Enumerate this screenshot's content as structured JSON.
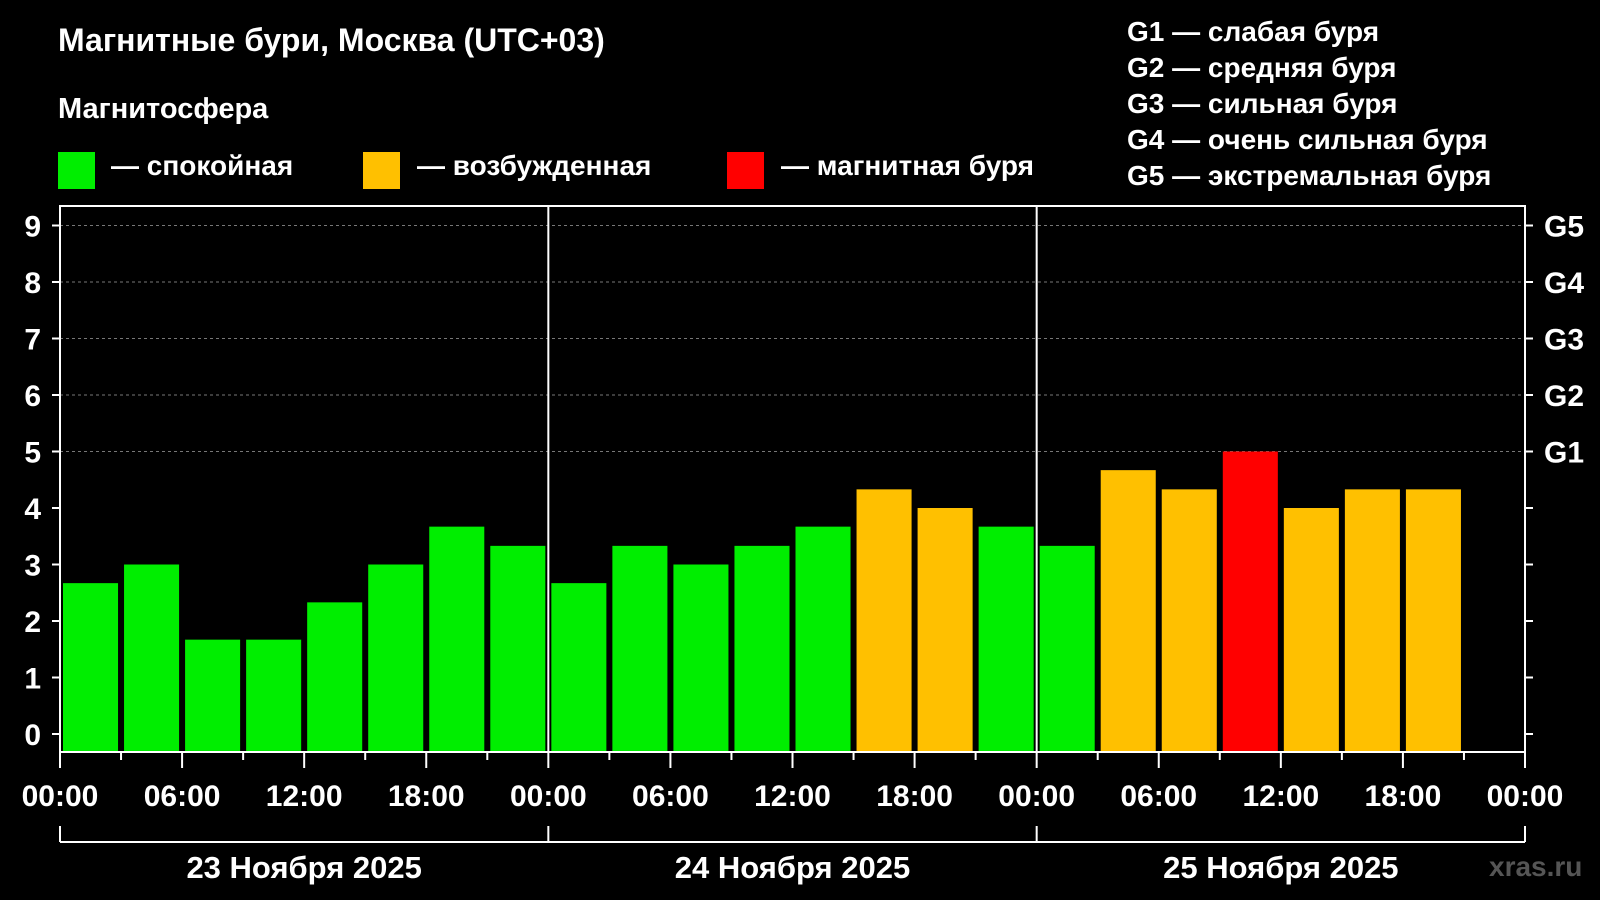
{
  "header": {
    "title": "Магнитные бури, Москва (UTC+03)",
    "subtitle": "Магнитосфера"
  },
  "legend": [
    {
      "label": "— спокойная",
      "color": "#00ee00"
    },
    {
      "label": "— возбужденная",
      "color": "#ffc000"
    },
    {
      "label": "— магнитная буря",
      "color": "#ff0000"
    }
  ],
  "g_scale": [
    "G1 — слабая буря",
    "G2 — средняя буря",
    "G3 — сильная буря",
    "G4 — очень сильная буря",
    "G5 — экстремальная буря"
  ],
  "watermark": "xras.ru",
  "chart_data": {
    "type": "bar",
    "ylim": [
      0,
      9
    ],
    "y_ticks": [
      "0",
      "1",
      "2",
      "3",
      "4",
      "5",
      "6",
      "7",
      "8",
      "9"
    ],
    "y_right_ticks": [
      {
        "value": 5,
        "label": "G1"
      },
      {
        "value": 6,
        "label": "G2"
      },
      {
        "value": 7,
        "label": "G3"
      },
      {
        "value": 8,
        "label": "G4"
      },
      {
        "value": 9,
        "label": "G5"
      }
    ],
    "x_tick_labels": [
      "00:00",
      "06:00",
      "12:00",
      "18:00",
      "00:00",
      "06:00",
      "12:00",
      "18:00",
      "00:00",
      "06:00",
      "12:00",
      "18:00",
      "00:00"
    ],
    "days": [
      "23 Ноября 2025",
      "24 Ноября 2025",
      "25 Ноября 2025"
    ],
    "bar_interval_hours": 3,
    "values": [
      2.67,
      3.0,
      1.67,
      1.67,
      2.33,
      3.0,
      3.67,
      3.33,
      2.67,
      3.33,
      3.0,
      3.33,
      3.67,
      4.33,
      4.0,
      3.67,
      3.33,
      4.67,
      4.33,
      5.0,
      4.0,
      4.33,
      4.33
    ],
    "categories": [
      "quiet",
      "quiet",
      "quiet",
      "quiet",
      "quiet",
      "quiet",
      "quiet",
      "quiet",
      "quiet",
      "quiet",
      "quiet",
      "quiet",
      "quiet",
      "active",
      "active",
      "quiet",
      "quiet",
      "active",
      "active",
      "storm",
      "active",
      "active",
      "active"
    ],
    "colors": {
      "quiet": "#00ee00",
      "active": "#ffc000",
      "storm": "#ff0000"
    },
    "grid": "dashed horizontal"
  }
}
